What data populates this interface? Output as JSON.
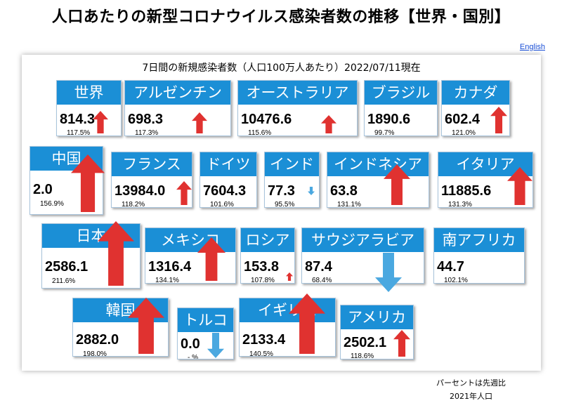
{
  "title": "人口あたりの新型コロナウイルス感染者数の推移【世界・国別】",
  "language_link": "English",
  "subtitle": "7日間の新規感染者数（人口100万人あたり）2022/07/11現在",
  "note": {
    "line1": "パーセントは先週比",
    "line2": "2021年人口"
  },
  "colors": {
    "header": "#1b8fd6",
    "up_arrow": "#e03230",
    "down_arrow": "#4aa8e0"
  },
  "regions": [
    {
      "name": "世界",
      "value": "814.3",
      "change": "117.5%",
      "direction": "up",
      "change_ratio": 1.175
    },
    {
      "name": "アルゼンチン",
      "value": "698.3",
      "change": "117.3%",
      "direction": "up",
      "change_ratio": 1.173
    },
    {
      "name": "オーストラリア",
      "value": "10476.6",
      "change": "115.6%",
      "direction": "up",
      "change_ratio": 1.156
    },
    {
      "name": "ブラジル",
      "value": "1890.6",
      "change": "99.7%",
      "direction": "down",
      "change_ratio": 0.997
    },
    {
      "name": "カナダ",
      "value": "602.4",
      "change": "121.0%",
      "direction": "up",
      "change_ratio": 1.21
    },
    {
      "name": "中国",
      "value": "2.0",
      "change": "156.9%",
      "direction": "up",
      "change_ratio": 1.569
    },
    {
      "name": "フランス",
      "value": "13984.0",
      "change": "118.2%",
      "direction": "up",
      "change_ratio": 1.182
    },
    {
      "name": "ドイツ",
      "value": "7604.3",
      "change": "101.6%",
      "direction": "up",
      "change_ratio": 1.016
    },
    {
      "name": "インド",
      "value": "77.3",
      "change": "95.5%",
      "direction": "down",
      "change_ratio": 0.955
    },
    {
      "name": "インドネシア",
      "value": "63.8",
      "change": "131.1%",
      "direction": "up",
      "change_ratio": 1.311
    },
    {
      "name": "イタリア",
      "value": "11885.6",
      "change": "131.3%",
      "direction": "up",
      "change_ratio": 1.313
    },
    {
      "name": "日本",
      "value": "2586.1",
      "change": "211.6%",
      "direction": "up",
      "change_ratio": 2.116
    },
    {
      "name": "メキシコ",
      "value": "1316.4",
      "change": "134.1%",
      "direction": "up",
      "change_ratio": 1.341
    },
    {
      "name": "ロシア",
      "value": "153.8",
      "change": "107.8%",
      "direction": "up",
      "change_ratio": 1.078
    },
    {
      "name": "サウジアラビア",
      "value": "87.4",
      "change": "68.4%",
      "direction": "down",
      "change_ratio": 0.684
    },
    {
      "name": "南アフリカ",
      "value": "44.7",
      "change": "102.1%",
      "direction": "up",
      "change_ratio": 1.021
    },
    {
      "name": "韓国",
      "value": "2882.0",
      "change": "198.0%",
      "direction": "up",
      "change_ratio": 1.98
    },
    {
      "name": "トルコ",
      "value": "0.0",
      "change": "- %",
      "direction": "down",
      "change_ratio": null
    },
    {
      "name": "イギリス",
      "value": "2133.4",
      "change": "140.5%",
      "direction": "up",
      "change_ratio": 1.405
    },
    {
      "name": "アメリカ",
      "value": "2502.1",
      "change": "118.6%",
      "direction": "up",
      "change_ratio": 1.186
    }
  ]
}
